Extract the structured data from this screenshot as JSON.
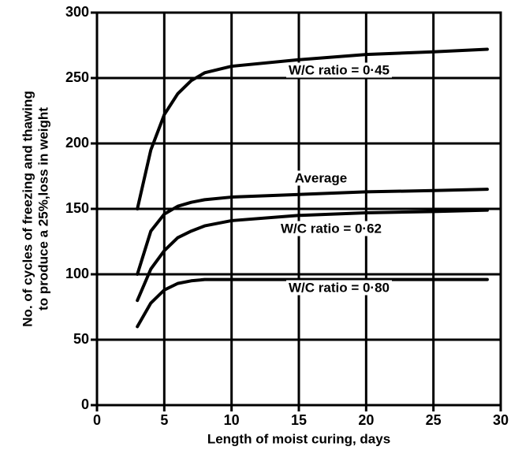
{
  "chart_data": {
    "type": "line",
    "x_label": "Length of moist curing, days",
    "y_label": [
      "No. of cycles of freezing and thawing",
      "to produce a 25%,loss in weight"
    ],
    "x": [
      3,
      4,
      5,
      6,
      7,
      8,
      10,
      15,
      20,
      25,
      29
    ],
    "series": [
      {
        "name": "W/C ratio = 0·45",
        "color": "#000000",
        "values": [
          150,
          195,
          222,
          238,
          248,
          254,
          259,
          264,
          268,
          270,
          272
        ]
      },
      {
        "name": "Average",
        "color": "#000000",
        "values": [
          100,
          133,
          146,
          152,
          155,
          157,
          159,
          161,
          163,
          164,
          165
        ]
      },
      {
        "name": "W/C ratio = 0·62",
        "color": "#000000",
        "values": [
          80,
          104,
          118,
          128,
          133,
          137,
          141,
          145,
          147,
          148,
          149
        ]
      },
      {
        "name": "W/C ratio = 0·80",
        "color": "#000000",
        "values": [
          60,
          78,
          88,
          93,
          95,
          96,
          96,
          96,
          96,
          96,
          96
        ]
      }
    ],
    "xlim": [
      0,
      30
    ],
    "xticks": [
      0,
      5,
      10,
      15,
      20,
      25,
      30
    ],
    "ylim": [
      0,
      300
    ],
    "yticks": [
      0,
      50,
      100,
      150,
      200,
      250,
      300
    ],
    "grid": true
  }
}
